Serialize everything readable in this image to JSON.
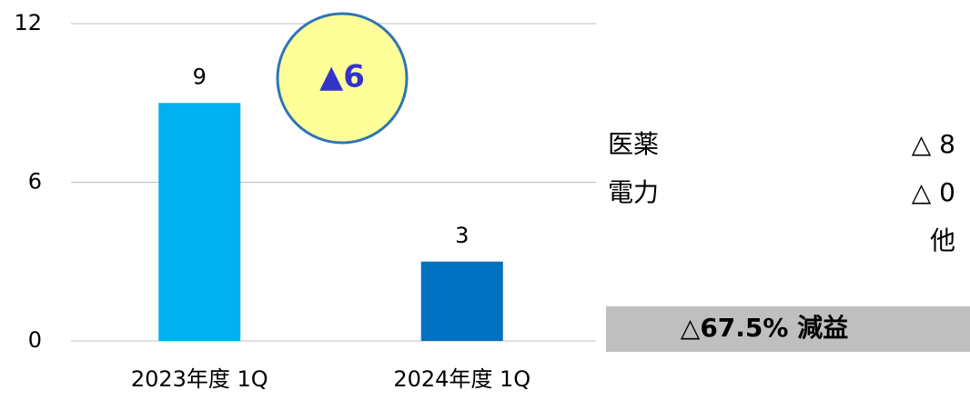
{
  "chart_data": {
    "type": "bar",
    "categories": [
      "2023年度 1Q",
      "2024年度 1Q"
    ],
    "values": [
      9,
      3
    ],
    "colors": [
      "#00b0f0",
      "#0070c0"
    ],
    "ylim": [
      0,
      12
    ],
    "yticks": [
      0,
      6,
      12
    ],
    "grid": true,
    "annotation": "▲6",
    "breakdown": [
      {
        "label": "医薬",
        "value": "△ 8"
      },
      {
        "label": "電力",
        "value": "△ 0"
      },
      {
        "label": "他"
      }
    ],
    "summary": "△67.5% 減益"
  }
}
